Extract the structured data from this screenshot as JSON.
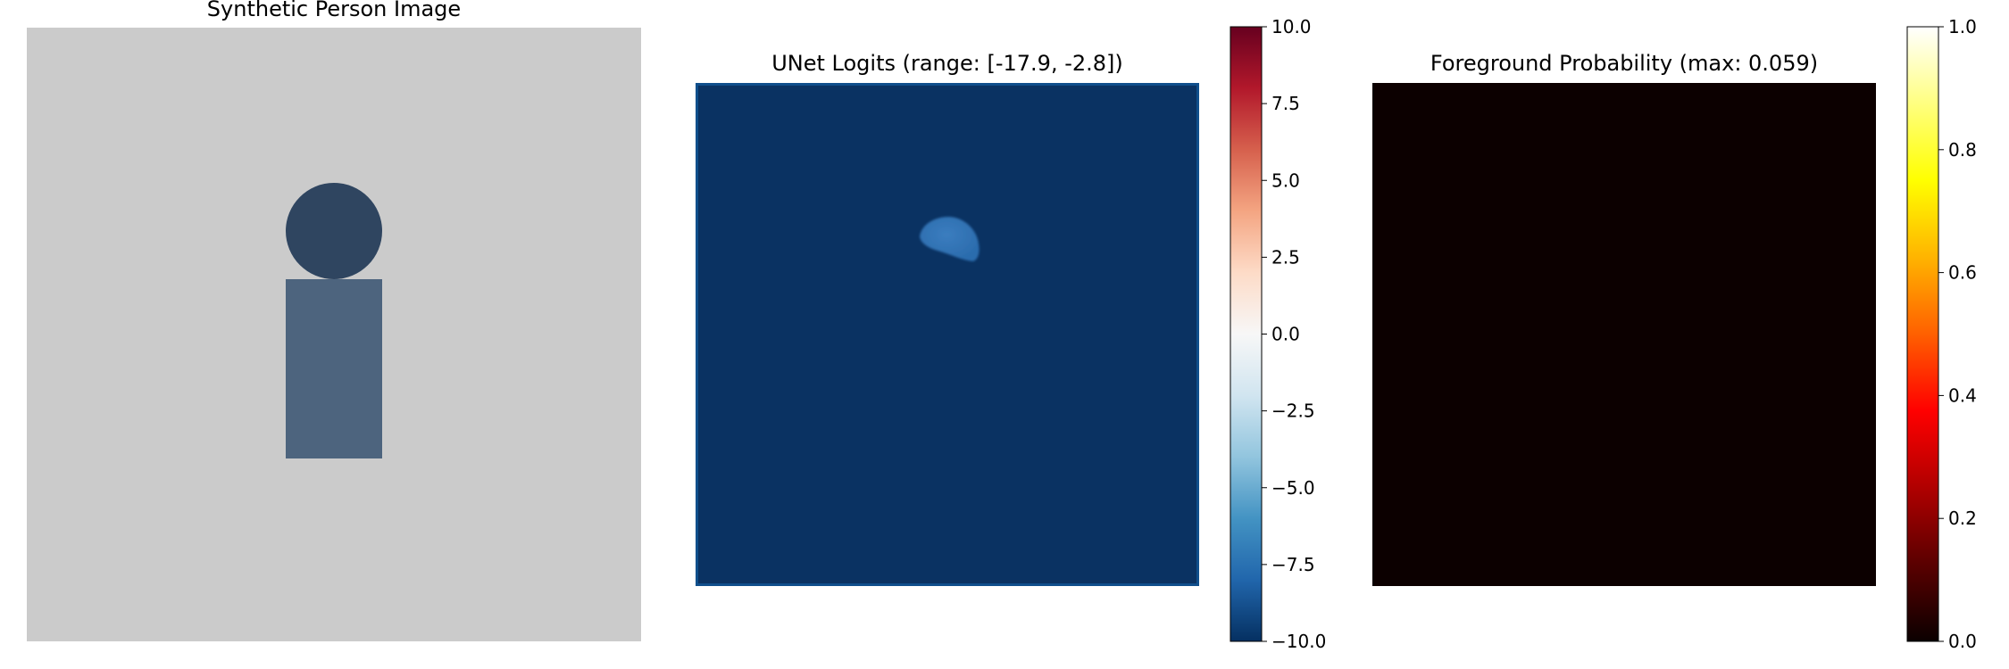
{
  "panels": [
    {
      "title": "Synthetic Person Image",
      "colors": {
        "background": "#cbcbcb",
        "head": "#2f4560",
        "body": "#4d647e"
      }
    },
    {
      "title": "UNet Logits (range: [-17.9, -2.8])",
      "colors": {
        "field": "#0a3262",
        "edge": "#104f8c",
        "blob": "#2b6cad",
        "blob_core": "#3b7dbf"
      },
      "colorbar": {
        "colormap": "RdBu_r",
        "range": [
          -10.0,
          10.0
        ],
        "tick_labels": [
          "10.0",
          "7.5",
          "5.0",
          "2.5",
          "0.0",
          "−2.5",
          "−5.0",
          "−7.5",
          "−10.0"
        ],
        "stops": [
          "#053061",
          "#2166ac",
          "#4393c3",
          "#92c5de",
          "#d1e5f0",
          "#f7f7f7",
          "#fddbc7",
          "#f4a582",
          "#d6604d",
          "#b2182b",
          "#67001f"
        ]
      }
    },
    {
      "title": "Foreground Probability (max: 0.059)",
      "colors": {
        "field": "#0c0000"
      },
      "colorbar": {
        "colormap": "hot",
        "range": [
          0.0,
          1.0
        ],
        "tick_labels": [
          "1.0",
          "0.8",
          "0.6",
          "0.4",
          "0.2",
          "0.0"
        ],
        "stops": [
          "#0b0000",
          "#5a0000",
          "#b00000",
          "#ff0000",
          "#ff6000",
          "#ffb400",
          "#ffff00",
          "#ffff80",
          "#ffffff"
        ]
      }
    }
  ]
}
